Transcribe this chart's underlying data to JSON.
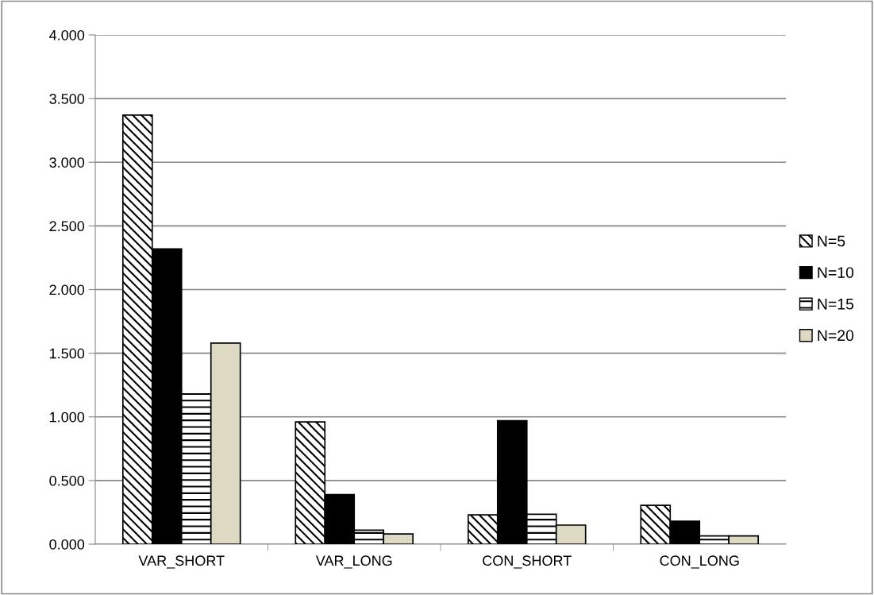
{
  "chart_data": {
    "type": "bar",
    "categories": [
      "VAR_SHORT",
      "VAR_LONG",
      "CON_SHORT",
      "CON_LONG"
    ],
    "series": [
      {
        "name": "N=5",
        "color": "#000000",
        "values": [
          3.37,
          0.96,
          0.23,
          0.305
        ]
      },
      {
        "name": "N=10",
        "color": "#000000",
        "values": [
          2.32,
          0.39,
          0.97,
          0.18
        ]
      },
      {
        "name": "N=15",
        "color": "#000000",
        "values": [
          1.18,
          0.11,
          0.235,
          0.065
        ]
      },
      {
        "name": "N=20",
        "color": "#ddd9c3",
        "values": [
          1.58,
          0.08,
          0.15,
          0.065
        ]
      }
    ],
    "ylim": [
      0,
      4
    ],
    "yticks": [
      {
        "value": 0,
        "label": "0.000"
      },
      {
        "value": 0.5,
        "label": "0.500"
      },
      {
        "value": 1,
        "label": "1.000"
      },
      {
        "value": 1.5,
        "label": "1.500"
      },
      {
        "value": 2,
        "label": "2.000"
      },
      {
        "value": 2.5,
        "label": "2.500"
      },
      {
        "value": 3,
        "label": "3.000"
      },
      {
        "value": 3.5,
        "label": "3.500"
      },
      {
        "value": 4,
        "label": "4.000"
      }
    ],
    "grid": "y",
    "legend": "right"
  }
}
